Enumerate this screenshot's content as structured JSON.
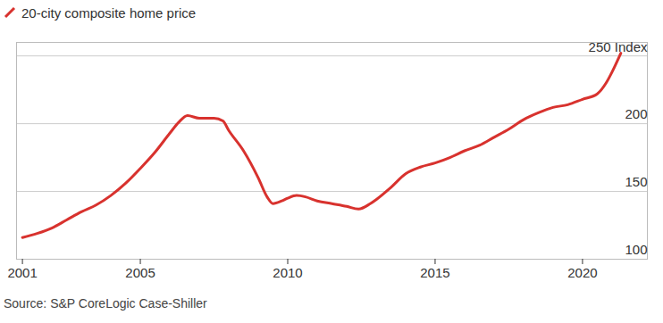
{
  "chart_data": {
    "type": "line",
    "caption": "Source: S&P CoreLogic Case-Shiller",
    "legend": "top-left",
    "grid": true,
    "x": [
      2001.0,
      2001.5,
      2002.0,
      2002.5,
      2003.0,
      2003.5,
      2004.0,
      2004.5,
      2005.0,
      2005.5,
      2006.0,
      2006.3,
      2006.6,
      2007.0,
      2007.5,
      2007.8,
      2008.0,
      2008.5,
      2009.0,
      2009.3,
      2009.5,
      2009.8,
      2010.0,
      2010.3,
      2010.6,
      2011.0,
      2011.5,
      2012.0,
      2012.4,
      2012.8,
      2013.0,
      2013.5,
      2014.0,
      2014.5,
      2015.0,
      2015.5,
      2016.0,
      2016.5,
      2017.0,
      2017.5,
      2018.0,
      2018.5,
      2019.0,
      2019.5,
      2020.0,
      2020.5,
      2020.8,
      2021.0,
      2021.3
    ],
    "series": [
      {
        "name": "20-city composite home price",
        "color": "#d8322e",
        "values": [
          116,
          119,
          123,
          129,
          135,
          140,
          147,
          156,
          167,
          179,
          193,
          201,
          206,
          204,
          204,
          202,
          195,
          180,
          160,
          146,
          141,
          143,
          145,
          147,
          146,
          143,
          141,
          139,
          137,
          141,
          144,
          153,
          163,
          168,
          171,
          175,
          180,
          184,
          190,
          196,
          203,
          208,
          212,
          214,
          218,
          222,
          230,
          238,
          252
        ]
      }
    ],
    "xlim": [
      2000.8,
      2022.2
    ],
    "xticks": [
      2001,
      2005,
      2010,
      2015,
      2020
    ],
    "ylim": [
      100,
      260
    ],
    "yticks": [
      100,
      150,
      200,
      {
        "value": 250,
        "label": "250 Index"
      }
    ]
  }
}
